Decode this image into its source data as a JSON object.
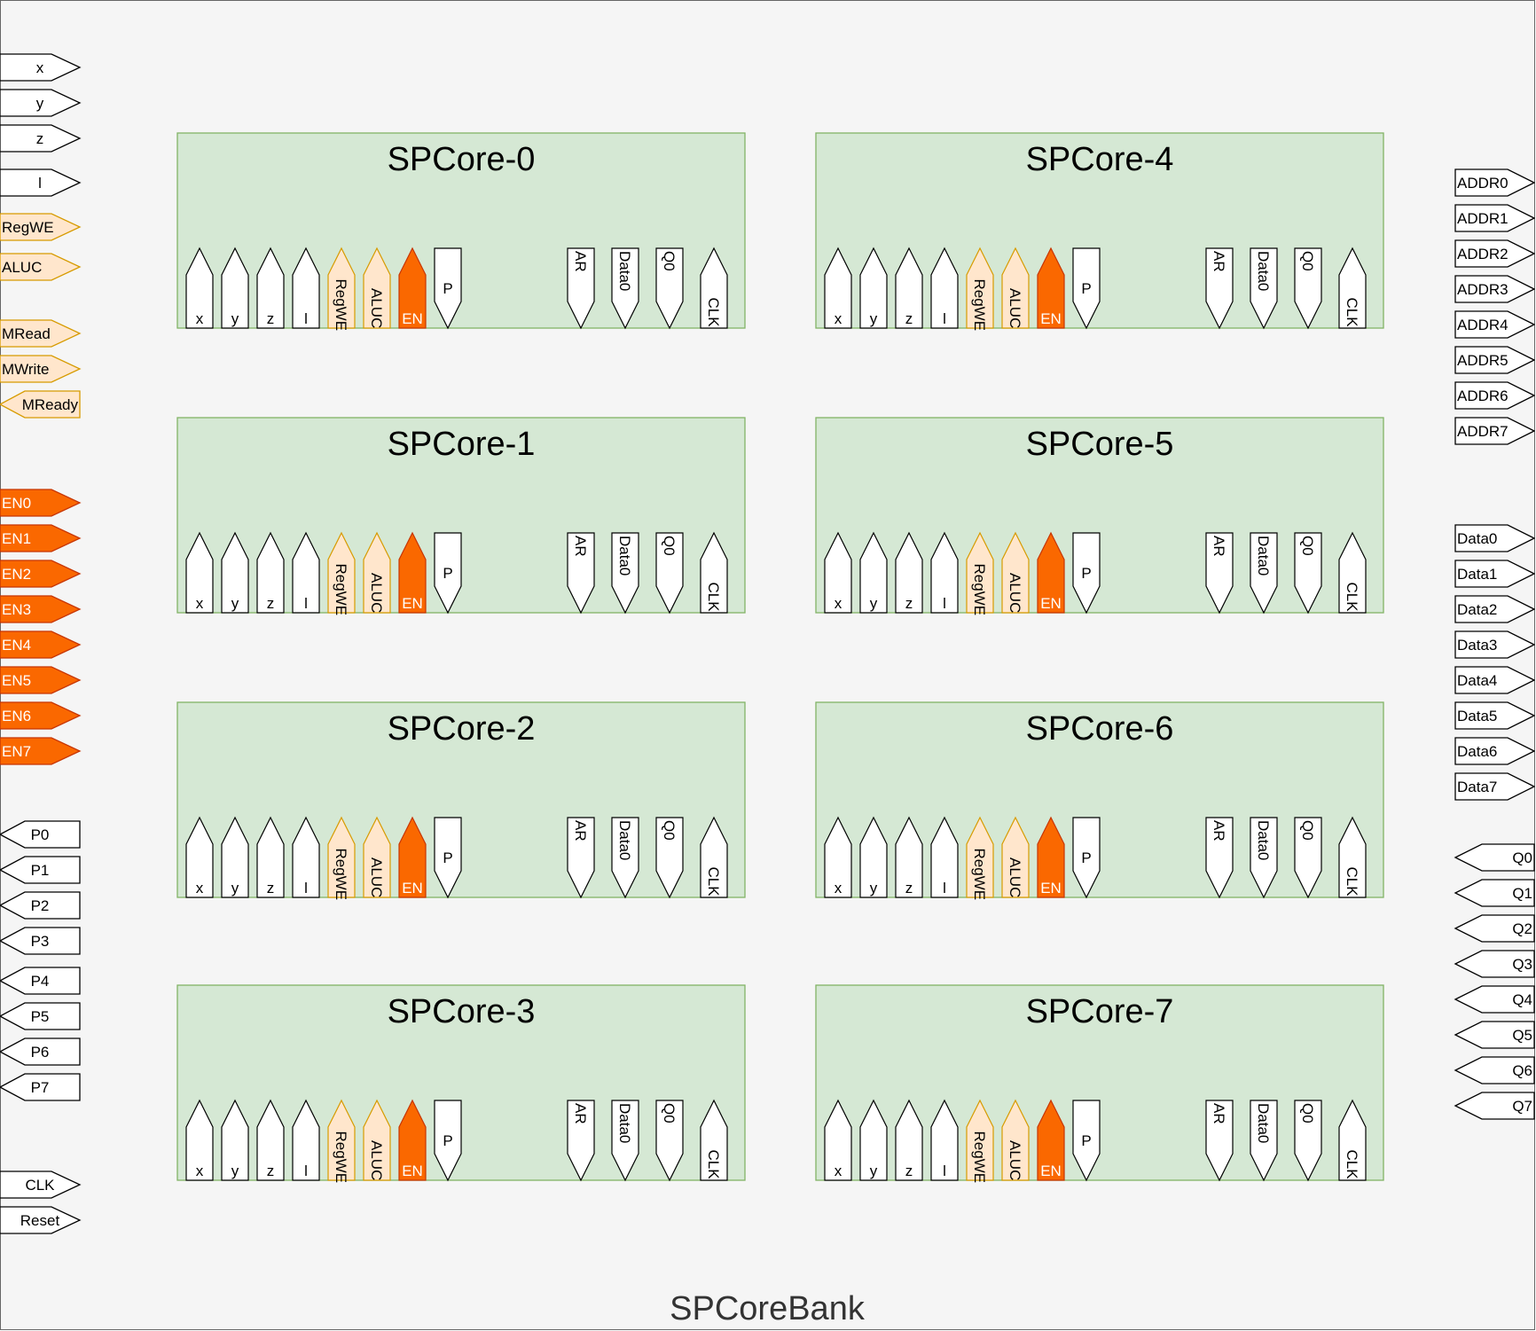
{
  "bank": {
    "title": "SPCoreBank",
    "colors": {
      "background": "#f5f5f5",
      "border": "#666666",
      "core_fill": "#d5e8d4",
      "core_stroke": "#82b366",
      "pin_white_fill": "#ffffff",
      "pin_white_stroke": "#000000",
      "pin_ctrl_fill": "#ffe6cc",
      "pin_ctrl_stroke": "#d79b00",
      "pin_en_fill": "#fa6800",
      "pin_en_stroke": "#c73500",
      "pin_en_text": "#ffffff"
    },
    "left_ports": [
      {
        "label": "x",
        "dir": "in",
        "style": "white"
      },
      {
        "label": "y",
        "dir": "in",
        "style": "white"
      },
      {
        "label": "z",
        "dir": "in",
        "style": "white"
      },
      {
        "label": "l",
        "dir": "in",
        "style": "white"
      },
      {
        "label": "RegWE",
        "dir": "in",
        "style": "ctrl"
      },
      {
        "label": "ALUC",
        "dir": "in",
        "style": "ctrl"
      },
      {
        "label": "MRead",
        "dir": "in",
        "style": "ctrl"
      },
      {
        "label": "MWrite",
        "dir": "in",
        "style": "ctrl"
      },
      {
        "label": "MReady",
        "dir": "out",
        "style": "ctrl"
      },
      {
        "label": "EN0",
        "dir": "in",
        "style": "en"
      },
      {
        "label": "EN1",
        "dir": "in",
        "style": "en"
      },
      {
        "label": "EN2",
        "dir": "in",
        "style": "en"
      },
      {
        "label": "EN3",
        "dir": "in",
        "style": "en"
      },
      {
        "label": "EN4",
        "dir": "in",
        "style": "en"
      },
      {
        "label": "EN5",
        "dir": "in",
        "style": "en"
      },
      {
        "label": "EN6",
        "dir": "in",
        "style": "en"
      },
      {
        "label": "EN7",
        "dir": "in",
        "style": "en"
      },
      {
        "label": "P0",
        "dir": "out",
        "style": "white"
      },
      {
        "label": "P1",
        "dir": "out",
        "style": "white"
      },
      {
        "label": "P2",
        "dir": "out",
        "style": "white"
      },
      {
        "label": "P3",
        "dir": "out",
        "style": "white"
      },
      {
        "label": "P4",
        "dir": "out",
        "style": "white"
      },
      {
        "label": "P5",
        "dir": "out",
        "style": "white"
      },
      {
        "label": "P6",
        "dir": "out",
        "style": "white"
      },
      {
        "label": "P7",
        "dir": "out",
        "style": "white"
      },
      {
        "label": "CLK",
        "dir": "in",
        "style": "white"
      },
      {
        "label": "Reset",
        "dir": "in",
        "style": "white"
      }
    ],
    "right_ports": [
      {
        "label": "ADDR0",
        "dir": "out"
      },
      {
        "label": "ADDR1",
        "dir": "out"
      },
      {
        "label": "ADDR2",
        "dir": "out"
      },
      {
        "label": "ADDR3",
        "dir": "out"
      },
      {
        "label": "ADDR4",
        "dir": "out"
      },
      {
        "label": "ADDR5",
        "dir": "out"
      },
      {
        "label": "ADDR6",
        "dir": "out"
      },
      {
        "label": "ADDR7",
        "dir": "out"
      },
      {
        "label": "Data0",
        "dir": "out"
      },
      {
        "label": "Data1",
        "dir": "out"
      },
      {
        "label": "Data2",
        "dir": "out"
      },
      {
        "label": "Data3",
        "dir": "out"
      },
      {
        "label": "Data4",
        "dir": "out"
      },
      {
        "label": "Data5",
        "dir": "out"
      },
      {
        "label": "Data6",
        "dir": "out"
      },
      {
        "label": "Data7",
        "dir": "out"
      },
      {
        "label": "Q0",
        "dir": "in"
      },
      {
        "label": "Q1",
        "dir": "in"
      },
      {
        "label": "Q2",
        "dir": "in"
      },
      {
        "label": "Q3",
        "dir": "in"
      },
      {
        "label": "Q4",
        "dir": "in"
      },
      {
        "label": "Q5",
        "dir": "in"
      },
      {
        "label": "Q6",
        "dir": "in"
      },
      {
        "label": "Q7",
        "dir": "in"
      }
    ],
    "cores": [
      {
        "name": "SPCore-0"
      },
      {
        "name": "SPCore-1"
      },
      {
        "name": "SPCore-2"
      },
      {
        "name": "SPCore-3"
      },
      {
        "name": "SPCore-4"
      },
      {
        "name": "SPCore-5"
      },
      {
        "name": "SPCore-6"
      },
      {
        "name": "SPCore-7"
      }
    ],
    "core_pins": [
      {
        "label": "x",
        "dir": "up",
        "style": "white",
        "vertical": false
      },
      {
        "label": "y",
        "dir": "up",
        "style": "white",
        "vertical": false
      },
      {
        "label": "z",
        "dir": "up",
        "style": "white",
        "vertical": false
      },
      {
        "label": "l",
        "dir": "up",
        "style": "white",
        "vertical": false
      },
      {
        "label": "RegWE",
        "dir": "up",
        "style": "ctrl",
        "vertical": true
      },
      {
        "label": "ALUC",
        "dir": "up",
        "style": "ctrl",
        "vertical": true
      },
      {
        "label": "EN",
        "dir": "up",
        "style": "en",
        "vertical": false
      },
      {
        "label": "P",
        "dir": "down",
        "style": "white",
        "vertical": false
      },
      {
        "label": "AR",
        "dir": "down",
        "style": "white",
        "vertical": true
      },
      {
        "label": "Data0",
        "dir": "down",
        "style": "white",
        "vertical": true
      },
      {
        "label": "Q0",
        "dir": "down",
        "style": "white",
        "vertical": true
      },
      {
        "label": "CLK",
        "dir": "up",
        "style": "white",
        "vertical": true
      }
    ]
  }
}
